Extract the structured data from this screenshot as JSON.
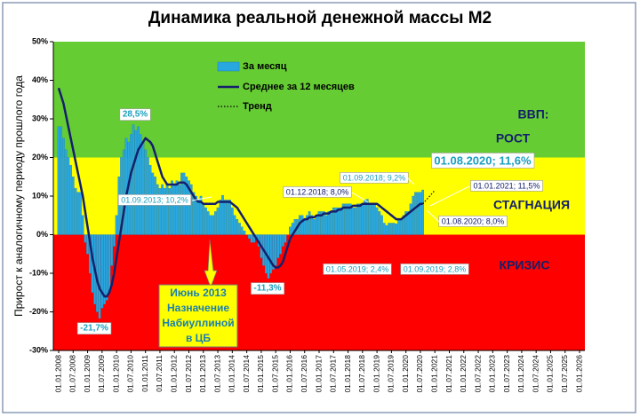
{
  "chart_data": {
    "type": "bar_line",
    "title": "Динамика реальной денежной массы М2",
    "y_label": "Прирост к аналогичному периоду прошлого года",
    "ylim": [
      -30,
      50
    ],
    "yticks": [
      {
        "value": -30,
        "label": "-30%"
      },
      {
        "value": -20,
        "label": "-20%"
      },
      {
        "value": -10,
        "label": "-10%"
      },
      {
        "value": 0,
        "label": "0%"
      },
      {
        "value": 10,
        "label": "10%"
      },
      {
        "value": 20,
        "label": "20%"
      },
      {
        "value": 30,
        "label": "30%"
      },
      {
        "value": 40,
        "label": "40%"
      },
      {
        "value": 50,
        "label": "50%"
      }
    ],
    "bands": [
      {
        "from": 20,
        "to": 50,
        "color": "#66cc33"
      },
      {
        "from": 0,
        "to": 20,
        "color": "#ffff00"
      },
      {
        "from": -30,
        "to": 0,
        "color": "#ff0000"
      }
    ],
    "categories": [
      "01.01.2008",
      null,
      null,
      null,
      null,
      null,
      "01.07.2008",
      null,
      null,
      null,
      null,
      null,
      "01.01.2009",
      null,
      null,
      null,
      null,
      null,
      "01.07.2009",
      null,
      null,
      null,
      null,
      null,
      "01.01.2010",
      null,
      null,
      null,
      null,
      null,
      "01.07.2010",
      null,
      null,
      null,
      null,
      null,
      "01.01.2011",
      null,
      null,
      null,
      null,
      null,
      "01.07.2011",
      null,
      null,
      null,
      null,
      null,
      "01.01.2012",
      null,
      null,
      null,
      null,
      null,
      "01.07.2012",
      null,
      null,
      null,
      null,
      null,
      "01.01.2013",
      null,
      null,
      null,
      null,
      null,
      "01.07.2013",
      null,
      null,
      null,
      null,
      null,
      "01.01.2014",
      null,
      null,
      null,
      null,
      null,
      "01.07.2014",
      null,
      null,
      null,
      null,
      null,
      "01.01.2015",
      null,
      null,
      null,
      null,
      null,
      "01.07.2015",
      null,
      null,
      null,
      null,
      null,
      "01.01.2016",
      null,
      null,
      null,
      null,
      null,
      "01.07.2016",
      null,
      null,
      null,
      null,
      null,
      "01.01.2017",
      null,
      null,
      null,
      null,
      null,
      "01.07.2017",
      null,
      null,
      null,
      null,
      null,
      "01.01.2018",
      null,
      null,
      null,
      null,
      null,
      "01.07.2018",
      null,
      null,
      null,
      null,
      null,
      "01.01.2019",
      null,
      null,
      null,
      null,
      null,
      "01.07.2019",
      null,
      null,
      null,
      null,
      null,
      "01.01.2020",
      null,
      null,
      null,
      null,
      null,
      "01.07.2020",
      null,
      null,
      null,
      null,
      null,
      "01.01.2021",
      null,
      null,
      null,
      null,
      null,
      "01.07.2021",
      null,
      null,
      null,
      null,
      null,
      "01.01.2022",
      null,
      null,
      null,
      null,
      null,
      "01.07.2022",
      null,
      null,
      null,
      null,
      null,
      "01.01.2023",
      null,
      null,
      null,
      null,
      null,
      "01.07.2023",
      null,
      null,
      null,
      null,
      null,
      "01.01.2024",
      null,
      null,
      null,
      null,
      null,
      "01.07.2024",
      null,
      null,
      null,
      null,
      null,
      "01.01.2025",
      null,
      null,
      null,
      null,
      null,
      "01.07.2025",
      null,
      null,
      null,
      null,
      null,
      "01.01.2026"
    ],
    "series": [
      {
        "name": "За месяц",
        "kind": "bar",
        "color": "#29a8e0",
        "values": [
          28,
          28,
          25,
          22,
          20,
          18,
          15,
          12,
          11,
          11,
          5,
          -2,
          -5,
          -10,
          -15,
          -18,
          -20,
          -21.7,
          -19,
          -18,
          -17,
          -15,
          -8,
          -3,
          5,
          15,
          20,
          22,
          25,
          24,
          26,
          28.5,
          27,
          28,
          26,
          24,
          22,
          20,
          18,
          16,
          15,
          13,
          12,
          13,
          12,
          13,
          12,
          14,
          13,
          14,
          13,
          16,
          16,
          15,
          14,
          13,
          11,
          10,
          9,
          10,
          8,
          7,
          6,
          5,
          5,
          6,
          7,
          9,
          10.2,
          9,
          9,
          9,
          7,
          5,
          4,
          3,
          2,
          1,
          0,
          -1,
          -2,
          -2,
          -1,
          -3,
          -6,
          -8,
          -10,
          -11.3,
          -10,
          -9,
          -8,
          -6,
          -5,
          -3,
          -2,
          0,
          2,
          3,
          4,
          4,
          5,
          5,
          4,
          5,
          6,
          5,
          4,
          5,
          6,
          6,
          6,
          5,
          6,
          6,
          7,
          7,
          7,
          7,
          8,
          8,
          8,
          8,
          7,
          7,
          8,
          8,
          8,
          9,
          9.2,
          8,
          8,
          8,
          7,
          6,
          5,
          3,
          2.4,
          3,
          3,
          3,
          2.8,
          4,
          4,
          5,
          6,
          6,
          8,
          10,
          11,
          11,
          11,
          11.6,
          null,
          null,
          null,
          null,
          null,
          null,
          null,
          null,
          null,
          null,
          null,
          null,
          null,
          null,
          null,
          null,
          null,
          null,
          null,
          null,
          null,
          null,
          null,
          null,
          null,
          null,
          null,
          null,
          null,
          null,
          null,
          null,
          null,
          null,
          null,
          null,
          null,
          null,
          null,
          null,
          null,
          null,
          null,
          null,
          null,
          null,
          null,
          null,
          null,
          null,
          null,
          null,
          null,
          null,
          null,
          null,
          null,
          null,
          null,
          null,
          null,
          null,
          null,
          null,
          null
        ]
      },
      {
        "name": "Среднее за 12 месяцев",
        "kind": "line",
        "color": "#14206b",
        "values": [
          38,
          36,
          34,
          31,
          28,
          25,
          22,
          19,
          16,
          13,
          10,
          6,
          2,
          -2,
          -6,
          -9,
          -12,
          -14,
          -15,
          -16,
          -16,
          -15,
          -13,
          -10,
          -6,
          -2,
          2,
          6,
          10,
          13,
          16,
          18,
          20,
          22,
          23,
          24,
          25,
          24.5,
          24,
          23,
          21,
          19,
          17,
          15,
          14,
          13,
          13,
          13,
          13,
          13,
          13.5,
          13.5,
          13.5,
          13,
          12,
          11,
          10,
          9,
          8.5,
          8.5,
          8,
          8,
          8,
          8,
          8,
          8,
          8.5,
          8.5,
          8.5,
          8.5,
          8.5,
          8.5,
          8,
          7.5,
          7,
          6,
          5,
          4,
          3,
          2,
          1,
          0,
          -1,
          -2,
          -3,
          -4,
          -5,
          -6,
          -7,
          -8,
          -8.5,
          -8.5,
          -8,
          -7,
          -5,
          -3,
          -1,
          0,
          1,
          2,
          3,
          3.5,
          4,
          4,
          4.5,
          4.5,
          4.5,
          5,
          5,
          5,
          5.5,
          5.5,
          5.5,
          6,
          6,
          6,
          6.5,
          6.5,
          7,
          7,
          7,
          7,
          7.5,
          7.5,
          7.5,
          7.5,
          8,
          8,
          8,
          8,
          8,
          8,
          8,
          7.5,
          7,
          6.5,
          6,
          5.5,
          5,
          4.5,
          4,
          4,
          4,
          4.5,
          5,
          5.5,
          6,
          6.5,
          7,
          7.5,
          8,
          8,
          null,
          null,
          null,
          null,
          null,
          null,
          null,
          null,
          null,
          null,
          null,
          null,
          null,
          null,
          null,
          null,
          null,
          null,
          null,
          null,
          null,
          null,
          null,
          null,
          null,
          null,
          null,
          null,
          null,
          null,
          null,
          null,
          null,
          null,
          null,
          null,
          null,
          null,
          null,
          null,
          null,
          null,
          null,
          null,
          null,
          null,
          null,
          null,
          null,
          null,
          null,
          null,
          null,
          null,
          null,
          null,
          null,
          null,
          null,
          null,
          null,
          null,
          null,
          null,
          null
        ]
      },
      {
        "name": "Тренд",
        "kind": "dotted",
        "color": "#000000",
        "values": [
          null,
          null,
          null,
          null,
          null,
          null,
          null,
          null,
          null,
          null,
          null,
          null,
          null,
          null,
          null,
          null,
          null,
          null,
          null,
          null,
          null,
          null,
          null,
          null,
          null,
          null,
          null,
          null,
          null,
          null,
          null,
          null,
          null,
          null,
          null,
          null,
          null,
          null,
          null,
          null,
          null,
          null,
          null,
          null,
          null,
          null,
          null,
          null,
          null,
          null,
          null,
          null,
          null,
          null,
          null,
          null,
          null,
          null,
          null,
          null,
          null,
          null,
          null,
          null,
          null,
          null,
          null,
          null,
          null,
          null,
          null,
          null,
          null,
          null,
          null,
          null,
          null,
          null,
          null,
          null,
          null,
          null,
          null,
          null,
          null,
          null,
          null,
          null,
          null,
          null,
          null,
          null,
          null,
          null,
          null,
          null,
          null,
          null,
          null,
          null,
          null,
          null,
          null,
          null,
          null,
          null,
          null,
          null,
          null,
          null,
          null,
          null,
          null,
          null,
          null,
          null,
          null,
          null,
          null,
          null,
          null,
          null,
          null,
          null,
          null,
          null,
          null,
          null,
          null,
          null,
          null,
          null,
          null,
          null,
          null,
          null,
          null,
          null,
          null,
          null,
          null,
          null,
          null,
          null,
          null,
          null,
          null,
          null,
          null,
          null,
          null,
          8,
          8.7,
          9.4,
          10.1,
          10.8,
          11.5,
          null,
          null,
          null,
          null,
          null,
          null,
          null,
          null,
          null,
          null,
          null,
          null,
          null,
          null,
          null,
          null,
          null,
          null,
          null,
          null,
          null,
          null,
          null,
          null,
          null,
          null,
          null,
          null,
          null,
          null,
          null,
          null,
          null,
          null,
          null,
          null,
          null,
          null,
          null,
          null,
          null,
          null,
          null,
          null,
          null,
          null,
          null,
          null,
          null,
          null,
          null,
          null,
          null,
          null,
          null,
          null,
          null,
          null,
          null,
          null
        ]
      }
    ],
    "zone_labels": [
      "ВВП:",
      "РОСТ",
      "СТАГНАЦИЯ",
      "КРИЗИС"
    ],
    "annotations": [
      {
        "text": "28,5%"
      },
      {
        "text": "-21,7%"
      },
      {
        "text": "-11,3%"
      },
      {
        "text": "01.09.2013; 10,2%"
      },
      {
        "text": "01.12.2018; 8,0%"
      },
      {
        "text": "01.09.2018; 9,2%"
      },
      {
        "text": "01.05.2019; 2,4%"
      },
      {
        "text": "01.09.2019; 2,8%"
      },
      {
        "text": "01.08.2020; 11,6%"
      },
      {
        "text": "01.01.2021; 11,5%"
      },
      {
        "text": "01.08.2020; 8,0%"
      }
    ],
    "note_box": {
      "lines": [
        "Июнь 2013",
        "Назначение",
        "Набиуллиной",
        "в ЦБ"
      ]
    }
  }
}
